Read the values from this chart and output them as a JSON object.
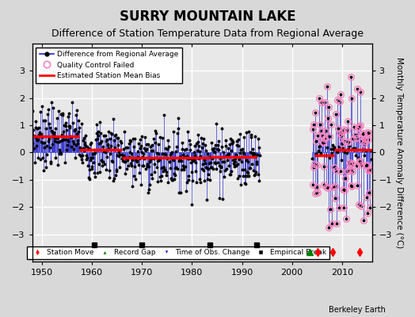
{
  "title": "SURRY MOUNTAIN LAKE",
  "subtitle": "Difference of Station Temperature Data from Regional Average",
  "ylabel": "Monthly Temperature Anomaly Difference (°C)",
  "xlim": [
    1948,
    2016
  ],
  "ylim": [
    -4,
    4
  ],
  "yticks": [
    -3,
    -2,
    -1,
    0,
    1,
    2,
    3
  ],
  "xticks": [
    1950,
    1960,
    1970,
    1980,
    1990,
    2000,
    2010
  ],
  "background_color": "#d8d8d8",
  "plot_bg_color": "#e8e8e8",
  "grid_color": "#c0c0c0",
  "title_fontsize": 12,
  "subtitle_fontsize": 9,
  "segment_biases": [
    {
      "start": 1948.0,
      "end": 1957.5,
      "bias": 0.6
    },
    {
      "start": 1957.5,
      "end": 1966.0,
      "bias": 0.1
    },
    {
      "start": 1966.0,
      "end": 1983.5,
      "bias": -0.2
    },
    {
      "start": 1983.5,
      "end": 1993.0,
      "bias": -0.15
    },
    {
      "start": 2004.5,
      "end": 2008.5,
      "bias": -0.1
    },
    {
      "start": 2008.5,
      "end": 2016.0,
      "bias": 0.1
    }
  ],
  "data_gap_start": 1993.5,
  "data_gap_end": 2004.0,
  "station_moves": [
    2005.2,
    2008.2,
    2013.5
  ],
  "record_gaps": [
    2003.5
  ],
  "obs_changes": [],
  "empirical_breaks": [
    1960.5,
    1970.0,
    1983.5,
    1993.0
  ],
  "seed": 7
}
